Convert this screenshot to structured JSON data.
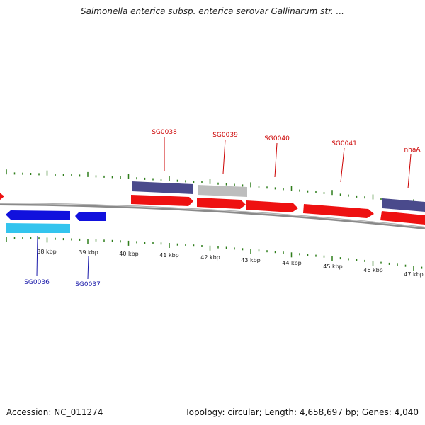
{
  "header": {
    "title": "Salmonella enterica subsp. enterica serovar Gallinarum str. ..."
  },
  "footer": {
    "accession": "Accession: NC_011274",
    "topology": "Topology: circular; Length: 4,658,697 bp; Genes: 4,040"
  },
  "colors": {
    "forward_gene": "#ee1111",
    "forward_gene_label": "#cc0000",
    "reverse_gene": "#1111dd",
    "reverse_gene_label": "#1a1aaa",
    "cds_dark": "#4a4a8c",
    "cds_light": "#33c4ee",
    "gray_feature": "#bdbdbd",
    "tick": "#2e7d1a",
    "backbone": "#888888"
  },
  "ruler": {
    "tick_labels": [
      "38 kbp",
      "39 kbp",
      "40 kbp",
      "41 kbp",
      "42 kbp",
      "43 kbp",
      "44 kbp",
      "45 kbp",
      "46 kbp",
      "47 kbp"
    ]
  },
  "genes": {
    "forward_labels": [
      "SG0038",
      "SG0039",
      "SG0040",
      "SG0041",
      "nhaA"
    ],
    "reverse_labels": [
      "SG0036",
      "SG0037"
    ]
  }
}
